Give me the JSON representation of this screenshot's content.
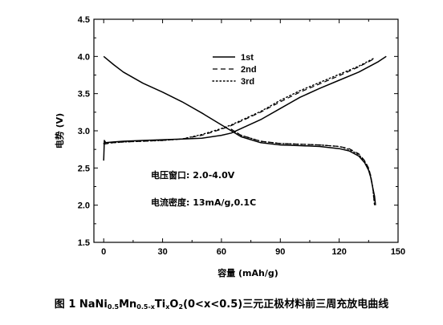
{
  "chart_data": {
    "type": "line",
    "xlabel": "容量 (mAh/g)",
    "ylabel": "电势 (V)",
    "xlim": [
      -5,
      150
    ],
    "ylim": [
      1.5,
      4.5
    ],
    "xticks": [
      0,
      30,
      60,
      90,
      120,
      150
    ],
    "yticks": [
      1.5,
      2.0,
      2.5,
      3.0,
      3.5,
      4.0,
      4.5
    ],
    "xtick_labels": [
      "0",
      "30",
      "60",
      "90",
      "120",
      "150"
    ],
    "ytick_labels": [
      "1.5",
      "2.0",
      "2.5",
      "3.0",
      "3.5",
      "4.0",
      "4.5"
    ],
    "legend_position": "top-center",
    "grid": false,
    "series": [
      {
        "name": "1st",
        "dash": "solid",
        "charge": {
          "x": [
            0,
            0.3,
            1,
            5,
            10,
            20,
            30,
            40,
            50,
            60,
            65,
            70,
            80,
            90,
            100,
            110,
            120,
            130,
            140,
            144
          ],
          "y": [
            2.6,
            2.87,
            2.84,
            2.85,
            2.86,
            2.87,
            2.88,
            2.89,
            2.9,
            2.94,
            2.97,
            3.03,
            3.15,
            3.3,
            3.45,
            3.57,
            3.68,
            3.79,
            3.93,
            4.0
          ]
        },
        "discharge": {
          "x": [
            0,
            5,
            10,
            20,
            30,
            40,
            50,
            60,
            65,
            70,
            80,
            90,
            100,
            110,
            120,
            125,
            130,
            133,
            135,
            136,
            137,
            138,
            138.5
          ],
          "y": [
            4.0,
            3.89,
            3.79,
            3.64,
            3.52,
            3.39,
            3.24,
            3.08,
            3.0,
            2.92,
            2.84,
            2.81,
            2.8,
            2.79,
            2.76,
            2.73,
            2.66,
            2.57,
            2.47,
            2.38,
            2.25,
            2.12,
            2.0
          ]
        }
      },
      {
        "name": "2nd",
        "dash": "dashed",
        "charge": {
          "x": [
            0,
            5,
            10,
            20,
            30,
            40,
            50,
            60,
            65,
            70,
            80,
            90,
            100,
            110,
            120,
            130,
            138
          ],
          "y": [
            2.82,
            2.84,
            2.85,
            2.86,
            2.87,
            2.89,
            2.94,
            3.02,
            3.07,
            3.13,
            3.25,
            3.39,
            3.52,
            3.63,
            3.74,
            3.86,
            3.97
          ]
        },
        "discharge": {
          "x": [
            65,
            70,
            80,
            90,
            100,
            110,
            120,
            125,
            130,
            133,
            135,
            136,
            137,
            138
          ],
          "y": [
            3.02,
            2.94,
            2.86,
            2.83,
            2.82,
            2.81,
            2.79,
            2.76,
            2.69,
            2.6,
            2.5,
            2.4,
            2.26,
            2.0
          ]
        }
      },
      {
        "name": "3rd",
        "dash": "dotted",
        "charge": {
          "x": [
            0,
            5,
            10,
            20,
            30,
            40,
            50,
            60,
            65,
            70,
            80,
            90,
            100,
            110,
            120,
            130,
            138
          ],
          "y": [
            2.83,
            2.84,
            2.85,
            2.86,
            2.87,
            2.89,
            2.95,
            3.03,
            3.08,
            3.14,
            3.26,
            3.41,
            3.54,
            3.65,
            3.76,
            3.87,
            3.98
          ]
        },
        "discharge": {
          "x": [
            65,
            70,
            80,
            90,
            100,
            110,
            120,
            125,
            130,
            133,
            135,
            136,
            137,
            138
          ],
          "y": [
            3.02,
            2.94,
            2.86,
            2.83,
            2.82,
            2.81,
            2.79,
            2.75,
            2.68,
            2.59,
            2.49,
            2.4,
            2.26,
            2.0
          ]
        }
      }
    ],
    "annotations": [
      {
        "text": "电压窗口: 2.0-4.0V"
      },
      {
        "text": "电流密度: 13mA/g,0.1C"
      }
    ]
  },
  "caption": {
    "prefix": "图 1 NaNi",
    "sub1": "0.5",
    "mid1": "Mn",
    "sub2": "0.5-x",
    "mid2": "Ti",
    "sub3": "x",
    "mid3": "O",
    "sub4": "2",
    "suffix": "(0<x<0.5)三元正极材料前三周充放电曲线"
  }
}
